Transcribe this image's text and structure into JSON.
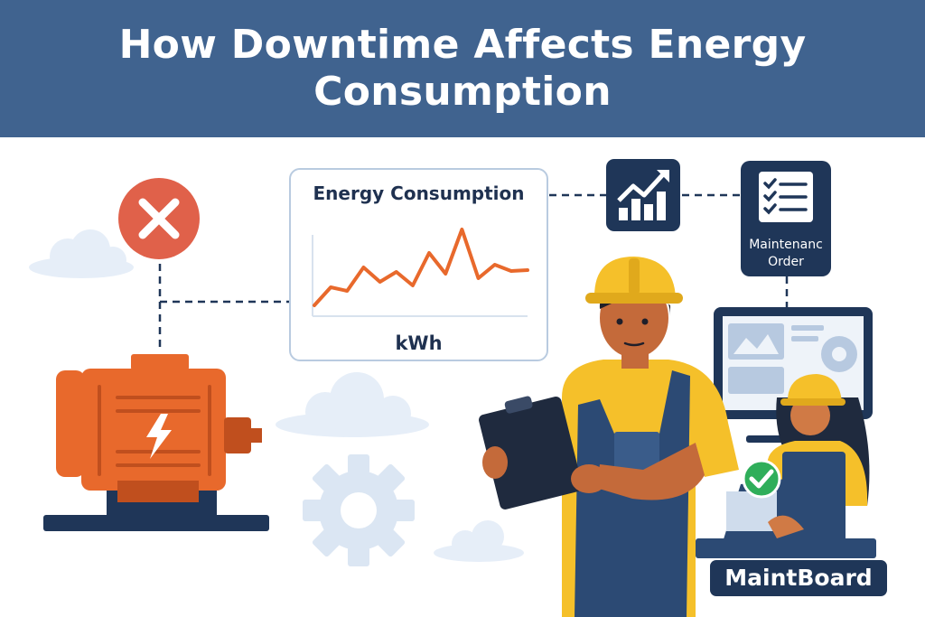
{
  "title": "How Downtime  Affects Energy Consumption",
  "energy_card": {
    "title": "Energy Consumption",
    "unit": "kWh"
  },
  "maintenance_order": {
    "label": "Maintenanc\nOrder"
  },
  "brand": {
    "name": "MaintBoard"
  },
  "colors": {
    "header_bg": "#40638f",
    "motor": "#e8692c",
    "line": "#e8692c",
    "error": "#e0614a",
    "navy": "#1f3658",
    "success": "#2fae5a",
    "helmet": "#f5c02a"
  },
  "icons": [
    "error-x-icon",
    "trend-up-icon",
    "checklist-icon",
    "check-icon",
    "gear-icon",
    "bolt-icon"
  ],
  "chart_data": {
    "type": "line",
    "title": "Energy Consumption",
    "xlabel": "",
    "ylabel": "kWh",
    "series": [
      {
        "values": [
          1,
          3,
          2.6,
          5.2,
          3.6,
          4.7,
          3.2,
          6.8,
          4.5,
          9.4,
          4.0,
          5.5,
          4.8,
          4.9
        ]
      }
    ],
    "ylim": [
      0,
      10
    ],
    "grid": false
  }
}
